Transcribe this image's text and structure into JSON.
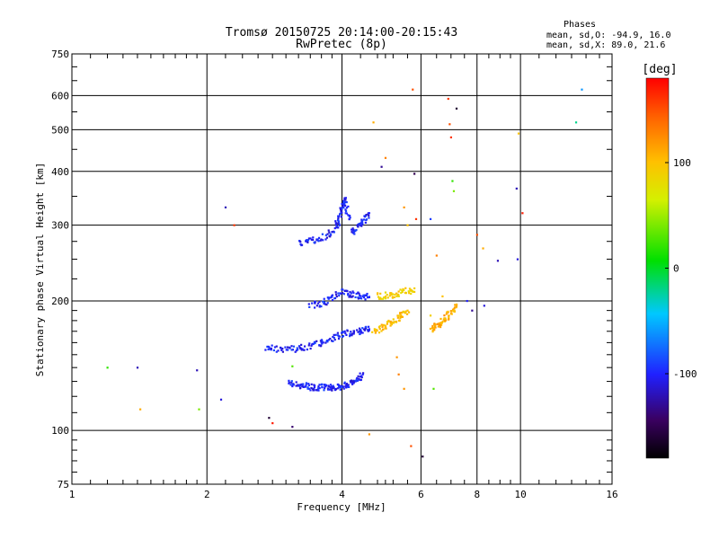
{
  "chart_data": {
    "type": "scatter",
    "title": "Tromsø 20150725 20:14:00-20:15:43",
    "subtitle": "RwPretec (8p)",
    "xlabel": "Frequency [MHz]",
    "ylabel": "Stationary phase Virtual Height [km]",
    "x_scale": "log",
    "y_scale": "log",
    "xlim": [
      1,
      16
    ],
    "ylim": [
      75,
      750
    ],
    "x_ticks": [
      "1",
      "2",
      "4",
      "6",
      "8",
      "10",
      "16"
    ],
    "x_tick_values": [
      1,
      2,
      4,
      6,
      8,
      10,
      16
    ],
    "y_ticks": [
      "75",
      "100",
      "200",
      "300",
      "400",
      "500",
      "600",
      "750"
    ],
    "y_tick_values": [
      75,
      100,
      200,
      300,
      400,
      500,
      600,
      750
    ],
    "grid": true,
    "phases_legend": {
      "heading": "Phases",
      "line1": "mean, sd,O: -94.9, 16.0",
      "line2": "mean, sd,X:  89.0, 21.6"
    },
    "colorbar": {
      "label": "[deg]",
      "range": [
        -180,
        180
      ],
      "ticks": [
        "100",
        "0",
        "-100"
      ],
      "tick_values": [
        100,
        0,
        -100
      ]
    },
    "traces": [
      {
        "f": [
          3.05,
          3.15,
          3.25,
          3.35,
          3.45,
          3.55,
          3.65,
          3.75,
          3.85,
          3.95
        ],
        "h": [
          129,
          128,
          127,
          127,
          126,
          126,
          126,
          126,
          126,
          126
        ],
        "phase": -100
      },
      {
        "f": [
          3.95,
          4.05,
          4.15,
          4.25,
          4.35,
          4.45
        ],
        "h": [
          126,
          127,
          128,
          130,
          132,
          135
        ],
        "phase": -100
      },
      {
        "f": [
          2.7,
          2.85,
          3.0,
          3.15,
          3.3,
          3.45,
          3.6,
          3.75,
          3.9,
          4.05,
          4.2,
          4.35,
          4.5,
          4.6
        ],
        "h": [
          155,
          155,
          155,
          155,
          156,
          158,
          160,
          163,
          166,
          168,
          169,
          170,
          171,
          172
        ],
        "phase": -100
      },
      {
        "f": [
          3.4,
          3.55,
          3.7,
          3.85,
          4.0,
          4.15,
          4.3,
          4.45,
          4.6
        ],
        "h": [
          195,
          197,
          200,
          205,
          210,
          208,
          206,
          205,
          204
        ],
        "phase": -100
      },
      {
        "f": [
          3.2,
          3.35,
          3.5,
          3.65,
          3.8,
          3.95
        ],
        "h": [
          272,
          275,
          278,
          282,
          290,
          300
        ],
        "phase": -100
      },
      {
        "f": [
          3.9,
          3.95,
          4.0,
          4.05,
          4.1,
          4.15
        ],
        "h": [
          300,
          315,
          330,
          345,
          330,
          310
        ],
        "phase": -100
      },
      {
        "f": [
          4.2,
          4.3,
          4.4,
          4.5,
          4.6
        ],
        "h": [
          290,
          295,
          300,
          310,
          320
        ],
        "phase": -100
      },
      {
        "f": [
          4.7,
          4.85,
          5.0,
          5.15,
          5.3,
          5.45,
          5.6
        ],
        "h": [
          170,
          172,
          175,
          178,
          182,
          186,
          190
        ],
        "phase": 100
      },
      {
        "f": [
          4.8,
          5.0,
          5.2,
          5.4,
          5.6,
          5.8
        ],
        "h": [
          205,
          206,
          207,
          209,
          211,
          214
        ],
        "phase": 90
      },
      {
        "f": [
          6.3,
          6.45,
          6.6,
          6.75,
          6.9,
          7.05,
          7.2
        ],
        "h": [
          172,
          174,
          176,
          180,
          185,
          190,
          195
        ],
        "phase": 110
      }
    ],
    "points": [
      {
        "f": 1.2,
        "h": 140,
        "phase": 20
      },
      {
        "f": 1.4,
        "h": 140,
        "phase": -120
      },
      {
        "f": 1.42,
        "h": 112,
        "phase": 110
      },
      {
        "f": 1.9,
        "h": 138,
        "phase": -120
      },
      {
        "f": 1.92,
        "h": 112,
        "phase": 40
      },
      {
        "f": 2.15,
        "h": 118,
        "phase": -110
      },
      {
        "f": 2.2,
        "h": 330,
        "phase": -120
      },
      {
        "f": 2.3,
        "h": 300,
        "phase": 160
      },
      {
        "f": 2.75,
        "h": 107,
        "phase": -160
      },
      {
        "f": 2.8,
        "h": 104,
        "phase": 170
      },
      {
        "f": 3.1,
        "h": 102,
        "phase": -140
      },
      {
        "f": 4.6,
        "h": 98,
        "phase": 120
      },
      {
        "f": 4.7,
        "h": 520,
        "phase": 110
      },
      {
        "f": 5.3,
        "h": 148,
        "phase": 120
      },
      {
        "f": 5.35,
        "h": 135,
        "phase": 130
      },
      {
        "f": 5.5,
        "h": 125,
        "phase": 120
      },
      {
        "f": 5.7,
        "h": 92,
        "phase": 150
      },
      {
        "f": 5.75,
        "h": 620,
        "phase": 150
      },
      {
        "f": 5.8,
        "h": 395,
        "phase": -150
      },
      {
        "f": 5.85,
        "h": 310,
        "phase": 160
      },
      {
        "f": 6.05,
        "h": 87,
        "phase": -160
      },
      {
        "f": 6.3,
        "h": 185,
        "phase": 90
      },
      {
        "f": 6.4,
        "h": 125,
        "phase": 30
      },
      {
        "f": 6.5,
        "h": 255,
        "phase": 130
      },
      {
        "f": 6.7,
        "h": 205,
        "phase": 100
      },
      {
        "f": 6.9,
        "h": 590,
        "phase": 160
      },
      {
        "f": 6.95,
        "h": 515,
        "phase": 150
      },
      {
        "f": 7.0,
        "h": 480,
        "phase": 160
      },
      {
        "f": 7.05,
        "h": 380,
        "phase": 20
      },
      {
        "f": 7.1,
        "h": 360,
        "phase": 40
      },
      {
        "f": 7.2,
        "h": 560,
        "phase": -160
      },
      {
        "f": 7.6,
        "h": 200,
        "phase": -100
      },
      {
        "f": 7.8,
        "h": 190,
        "phase": -130
      },
      {
        "f": 8.3,
        "h": 195,
        "phase": -110
      },
      {
        "f": 8.0,
        "h": 285,
        "phase": 150
      },
      {
        "f": 8.25,
        "h": 265,
        "phase": 110
      },
      {
        "f": 8.9,
        "h": 248,
        "phase": -120
      },
      {
        "f": 9.8,
        "h": 365,
        "phase": -120
      },
      {
        "f": 9.85,
        "h": 250,
        "phase": -110
      },
      {
        "f": 9.9,
        "h": 490,
        "phase": 100
      },
      {
        "f": 10.1,
        "h": 320,
        "phase": 170
      },
      {
        "f": 13.3,
        "h": 520,
        "phase": -20
      },
      {
        "f": 13.7,
        "h": 620,
        "phase": -60
      },
      {
        "f": 3.1,
        "h": 141,
        "phase": 30
      },
      {
        "f": 4.9,
        "h": 410,
        "phase": -130
      },
      {
        "f": 5.0,
        "h": 430,
        "phase": 130
      },
      {
        "f": 5.5,
        "h": 330,
        "phase": 120
      },
      {
        "f": 5.6,
        "h": 300,
        "phase": 100
      },
      {
        "f": 6.3,
        "h": 310,
        "phase": -90
      }
    ]
  }
}
